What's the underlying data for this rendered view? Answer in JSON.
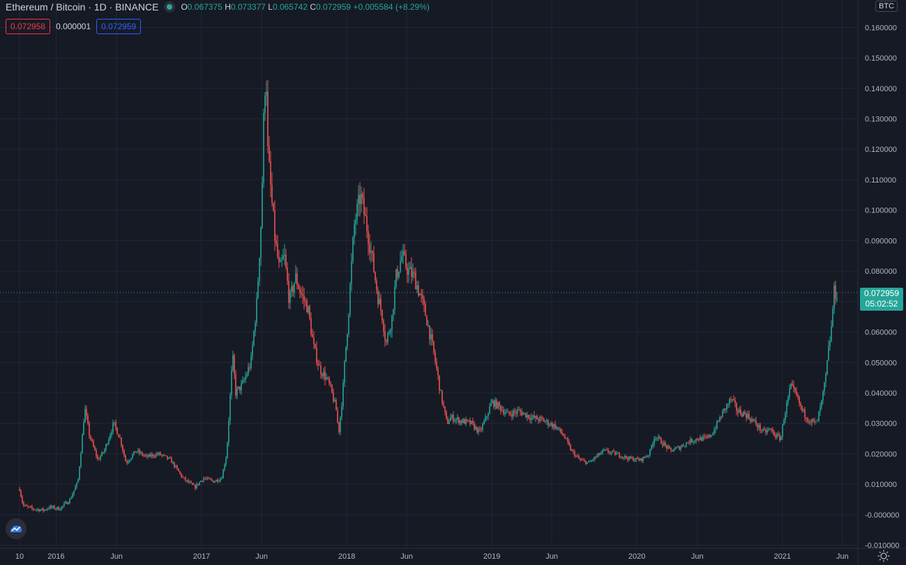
{
  "header": {
    "symbol": "Ethereum / Bitcoin",
    "interval": "1D",
    "exchange": "BINANCE",
    "open_label": "O",
    "open": "0.067375",
    "high_label": "H",
    "high": "0.073377",
    "low_label": "L",
    "low": "0.065742",
    "close_label": "C",
    "close": "0.072959",
    "change": "+0.005584 (+8.29%)"
  },
  "quote": {
    "sell": "0.072958",
    "spread": "0.000001",
    "buy": "0.072959"
  },
  "currency": "BTC",
  "last_price": {
    "value": "0.072959",
    "countdown": "05:02:52"
  },
  "colors": {
    "background": "#161a25",
    "grid": "#232735",
    "up": "#26a69a",
    "down": "#ef5350",
    "text": "#b2b5be"
  },
  "icons": {
    "logo": "tradingview-cloud-icon",
    "settings": "sun-icon"
  },
  "chart_data": {
    "type": "candlestick",
    "interval": "1D",
    "x_start": "2015-10-01",
    "x_end": "2021-05-20",
    "ylim": [
      -0.011,
      0.169
    ],
    "grid": true,
    "y_ticks": [
      "0.160000",
      "0.150000",
      "0.140000",
      "0.130000",
      "0.120000",
      "0.110000",
      "0.100000",
      "0.090000",
      "0.080000",
      "0.070000",
      "0.060000",
      "0.050000",
      "0.040000",
      "0.030000",
      "0.020000",
      "0.010000",
      "-0.000000",
      "-0.010000"
    ],
    "y_tick_values": [
      0.16,
      0.15,
      0.14,
      0.13,
      0.12,
      0.11,
      0.1,
      0.09,
      0.08,
      0.07,
      0.06,
      0.05,
      0.04,
      0.03,
      0.02,
      0.01,
      0.0,
      -0.01
    ],
    "x_ticks": [
      {
        "label": "10",
        "date": "2015-10-01"
      },
      {
        "label": "2016",
        "date": "2016-01-01"
      },
      {
        "label": "Jun",
        "date": "2016-06-01"
      },
      {
        "label": "2017",
        "date": "2017-01-01"
      },
      {
        "label": "Jun",
        "date": "2017-06-01"
      },
      {
        "label": "2018",
        "date": "2018-01-01"
      },
      {
        "label": "Jun",
        "date": "2018-06-01"
      },
      {
        "label": "2019",
        "date": "2019-01-01"
      },
      {
        "label": "Jun",
        "date": "2019-06-01"
      },
      {
        "label": "2020",
        "date": "2020-01-01"
      },
      {
        "label": "Jun",
        "date": "2020-06-01"
      },
      {
        "label": "2021",
        "date": "2021-01-01"
      },
      {
        "label": "Jun",
        "date": "2021-06-01"
      }
    ],
    "series": [
      {
        "points": [
          [
            "2015-10-01",
            0.0085
          ],
          [
            "2015-10-10",
            0.003
          ],
          [
            "2015-11-01",
            0.002
          ],
          [
            "2015-12-01",
            0.0015
          ],
          [
            "2015-12-15",
            0.0025
          ],
          [
            "2016-01-10",
            0.002
          ],
          [
            "2016-02-05",
            0.005
          ],
          [
            "2016-02-25",
            0.011
          ],
          [
            "2016-03-05",
            0.023
          ],
          [
            "2016-03-13",
            0.035
          ],
          [
            "2016-03-25",
            0.026
          ],
          [
            "2016-04-15",
            0.018
          ],
          [
            "2016-05-01",
            0.021
          ],
          [
            "2016-05-25",
            0.03
          ],
          [
            "2016-06-10",
            0.025
          ],
          [
            "2016-06-25",
            0.017
          ],
          [
            "2016-07-20",
            0.021
          ],
          [
            "2016-08-15",
            0.019
          ],
          [
            "2016-09-15",
            0.02
          ],
          [
            "2016-10-15",
            0.018
          ],
          [
            "2016-11-15",
            0.012
          ],
          [
            "2016-12-15",
            0.009
          ],
          [
            "2017-01-05",
            0.012
          ],
          [
            "2017-02-01",
            0.011
          ],
          [
            "2017-02-20",
            0.012
          ],
          [
            "2017-03-05",
            0.02
          ],
          [
            "2017-03-20",
            0.052
          ],
          [
            "2017-03-28",
            0.04
          ],
          [
            "2017-04-15",
            0.043
          ],
          [
            "2017-05-05",
            0.05
          ],
          [
            "2017-05-20",
            0.07
          ],
          [
            "2017-06-01",
            0.1
          ],
          [
            "2017-06-05",
            0.125
          ],
          [
            "2017-06-12",
            0.15
          ],
          [
            "2017-06-16",
            0.12
          ],
          [
            "2017-06-25",
            0.105
          ],
          [
            "2017-07-05",
            0.09
          ],
          [
            "2017-07-16",
            0.08
          ],
          [
            "2017-07-28",
            0.085
          ],
          [
            "2017-08-10",
            0.07
          ],
          [
            "2017-08-25",
            0.078
          ],
          [
            "2017-09-10",
            0.072
          ],
          [
            "2017-09-25",
            0.068
          ],
          [
            "2017-10-10",
            0.055
          ],
          [
            "2017-10-25",
            0.048
          ],
          [
            "2017-11-10",
            0.045
          ],
          [
            "2017-11-20",
            0.042
          ],
          [
            "2017-12-05",
            0.035
          ],
          [
            "2017-12-12",
            0.027
          ],
          [
            "2017-12-22",
            0.04
          ],
          [
            "2017-12-28",
            0.052
          ],
          [
            "2018-01-05",
            0.065
          ],
          [
            "2018-01-12",
            0.08
          ],
          [
            "2018-01-20",
            0.095
          ],
          [
            "2018-02-05",
            0.105
          ],
          [
            "2018-02-12",
            0.1
          ],
          [
            "2018-02-20",
            0.095
          ],
          [
            "2018-03-05",
            0.085
          ],
          [
            "2018-03-20",
            0.072
          ],
          [
            "2018-04-01",
            0.065
          ],
          [
            "2018-04-10",
            0.056
          ],
          [
            "2018-04-25",
            0.065
          ],
          [
            "2018-05-05",
            0.078
          ],
          [
            "2018-05-20",
            0.085
          ],
          [
            "2018-06-05",
            0.08
          ],
          [
            "2018-06-20",
            0.078
          ],
          [
            "2018-07-05",
            0.072
          ],
          [
            "2018-07-20",
            0.065
          ],
          [
            "2018-08-05",
            0.055
          ],
          [
            "2018-08-15",
            0.048
          ],
          [
            "2018-08-25",
            0.04
          ],
          [
            "2018-09-10",
            0.03
          ],
          [
            "2018-09-20",
            0.032
          ],
          [
            "2018-10-10",
            0.031
          ],
          [
            "2018-11-10",
            0.03
          ],
          [
            "2018-12-01",
            0.027
          ],
          [
            "2018-12-15",
            0.031
          ],
          [
            "2019-01-01",
            0.037
          ],
          [
            "2019-01-15",
            0.036
          ],
          [
            "2019-02-10",
            0.033
          ],
          [
            "2019-03-10",
            0.034
          ],
          [
            "2019-04-10",
            0.032
          ],
          [
            "2019-05-10",
            0.031
          ],
          [
            "2019-06-10",
            0.029
          ],
          [
            "2019-07-01",
            0.026
          ],
          [
            "2019-07-20",
            0.021
          ],
          [
            "2019-08-10",
            0.018
          ],
          [
            "2019-09-01",
            0.017
          ],
          [
            "2019-09-20",
            0.019
          ],
          [
            "2019-10-10",
            0.021
          ],
          [
            "2019-11-10",
            0.02
          ],
          [
            "2019-12-10",
            0.0185
          ],
          [
            "2020-01-10",
            0.018
          ],
          [
            "2020-02-01",
            0.02
          ],
          [
            "2020-02-15",
            0.026
          ],
          [
            "2020-03-10",
            0.023
          ],
          [
            "2020-03-25",
            0.021
          ],
          [
            "2020-04-15",
            0.022
          ],
          [
            "2020-05-10",
            0.024
          ],
          [
            "2020-06-01",
            0.025
          ],
          [
            "2020-06-25",
            0.025
          ],
          [
            "2020-07-10",
            0.027
          ],
          [
            "2020-07-25",
            0.031
          ],
          [
            "2020-08-10",
            0.035
          ],
          [
            "2020-08-25",
            0.038
          ],
          [
            "2020-09-10",
            0.034
          ],
          [
            "2020-10-01",
            0.033
          ],
          [
            "2020-10-25",
            0.03
          ],
          [
            "2020-11-15",
            0.027
          ],
          [
            "2020-12-01",
            0.028
          ],
          [
            "2020-12-15",
            0.026
          ],
          [
            "2020-12-28",
            0.025
          ],
          [
            "2021-01-05",
            0.032
          ],
          [
            "2021-01-15",
            0.038
          ],
          [
            "2021-01-22",
            0.042
          ],
          [
            "2021-02-05",
            0.039
          ],
          [
            "2021-02-20",
            0.034
          ],
          [
            "2021-03-10",
            0.031
          ],
          [
            "2021-03-28",
            0.03
          ],
          [
            "2021-04-10",
            0.037
          ],
          [
            "2021-04-20",
            0.045
          ],
          [
            "2021-04-28",
            0.055
          ],
          [
            "2021-05-05",
            0.062
          ],
          [
            "2021-05-10",
            0.0729
          ]
        ]
      }
    ]
  }
}
